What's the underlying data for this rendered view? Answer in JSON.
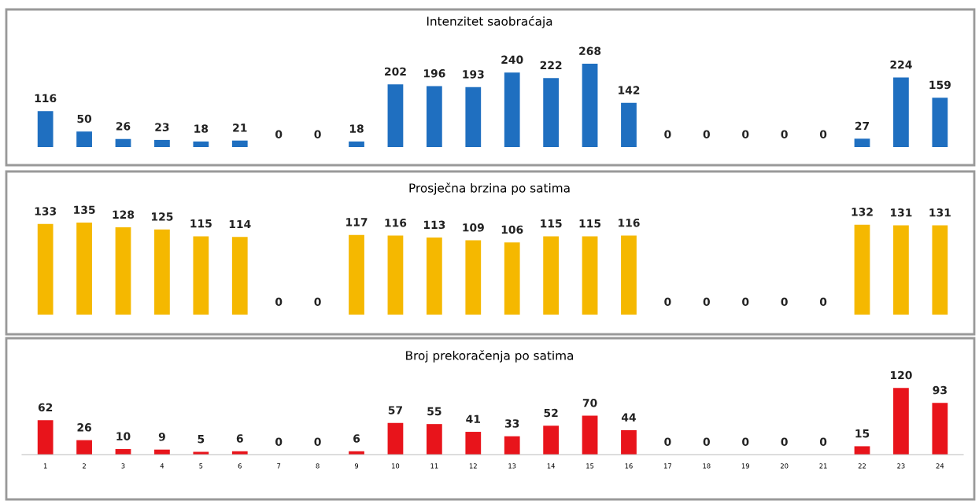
{
  "chart_data": [
    {
      "type": "bar",
      "title": "Intenzitet saobraćaja",
      "categories": [
        "1",
        "2",
        "3",
        "4",
        "5",
        "6",
        "7",
        "8",
        "9",
        "10",
        "11",
        "12",
        "13",
        "14",
        "15",
        "16",
        "17",
        "18",
        "19",
        "20",
        "21",
        "22",
        "23",
        "24"
      ],
      "tick_labels": false,
      "data_labels": true,
      "grid": false,
      "series": [
        {
          "color": "#1f6fc0",
          "values": [
            116,
            50,
            26,
            23,
            18,
            21,
            0,
            0,
            18,
            202,
            196,
            193,
            240,
            222,
            268,
            142,
            0,
            0,
            0,
            0,
            0,
            27,
            224,
            159
          ]
        }
      ]
    },
    {
      "type": "bar",
      "title": "Prosječna brzina po satima",
      "categories": [
        "1",
        "2",
        "3",
        "4",
        "5",
        "6",
        "7",
        "8",
        "9",
        "10",
        "11",
        "12",
        "13",
        "14",
        "15",
        "16",
        "17",
        "18",
        "19",
        "20",
        "21",
        "22",
        "23",
        "24"
      ],
      "tick_labels": false,
      "data_labels": true,
      "grid": false,
      "series": [
        {
          "color": "#f5b800",
          "values": [
            133,
            135,
            128,
            125,
            115,
            114,
            0,
            0,
            117,
            116,
            113,
            109,
            106,
            115,
            115,
            116,
            0,
            0,
            0,
            0,
            0,
            132,
            131,
            131
          ]
        }
      ]
    },
    {
      "type": "bar",
      "title": "Broj prekoračenja po satima",
      "categories": [
        "1",
        "2",
        "3",
        "4",
        "5",
        "6",
        "7",
        "8",
        "9",
        "10",
        "11",
        "12",
        "13",
        "14",
        "15",
        "16",
        "17",
        "18",
        "19",
        "20",
        "21",
        "22",
        "23",
        "24"
      ],
      "tick_labels": "x",
      "data_labels": true,
      "grid": false,
      "series": [
        {
          "color": "#e8141b",
          "values": [
            62,
            26,
            10,
            9,
            5,
            6,
            0,
            0,
            6,
            57,
            55,
            41,
            33,
            52,
            70,
            44,
            0,
            0,
            0,
            0,
            0,
            15,
            120,
            93
          ]
        }
      ]
    }
  ]
}
